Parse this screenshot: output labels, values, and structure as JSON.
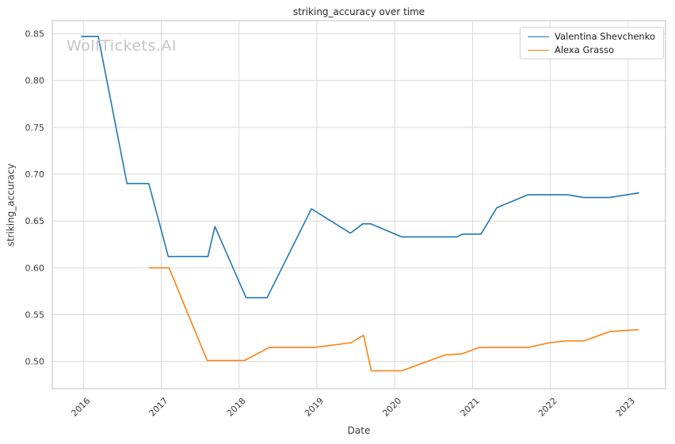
{
  "title": "striking_accuracy over time",
  "watermark": "WolfTickets.AI",
  "colors": {
    "background": "#ffffff",
    "grid": "#d9d9d9",
    "spine": "#cccccc",
    "tick_text": "#3a3a3a",
    "title_text": "#262626",
    "watermark_text": "#c4c4c4",
    "legend_border": "#d3d3d3"
  },
  "chart_data": {
    "type": "line",
    "title": "striking_accuracy over time",
    "xlabel": "Date",
    "ylabel": "striking_accuracy",
    "xlim": [
      2015.6,
      2023.48
    ],
    "ylim": [
      0.471,
      0.864
    ],
    "x_ticks": [
      2016,
      2017,
      2018,
      2019,
      2020,
      2021,
      2022,
      2023
    ],
    "y_ticks": [
      0.5,
      0.55,
      0.6,
      0.65,
      0.7,
      0.75,
      0.8,
      0.85
    ],
    "grid": true,
    "legend_position": "upper right",
    "series": [
      {
        "name": "Valentina Shevchenko",
        "color": "#1f77b4",
        "points": [
          [
            2015.97,
            0.847
          ],
          [
            2016.19,
            0.847
          ],
          [
            2016.56,
            0.69
          ],
          [
            2016.84,
            0.69
          ],
          [
            2017.09,
            0.612
          ],
          [
            2017.6,
            0.612
          ],
          [
            2017.69,
            0.644
          ],
          [
            2018.09,
            0.568
          ],
          [
            2018.36,
            0.568
          ],
          [
            2018.93,
            0.663
          ],
          [
            2019.43,
            0.637
          ],
          [
            2019.59,
            0.647
          ],
          [
            2019.69,
            0.647
          ],
          [
            2020.09,
            0.633
          ],
          [
            2020.8,
            0.633
          ],
          [
            2020.87,
            0.636
          ],
          [
            2021.11,
            0.636
          ],
          [
            2021.31,
            0.664
          ],
          [
            2021.71,
            0.678
          ],
          [
            2022.22,
            0.678
          ],
          [
            2022.43,
            0.675
          ],
          [
            2022.76,
            0.675
          ],
          [
            2023.14,
            0.68
          ]
        ]
      },
      {
        "name": "Alexa Grasso",
        "color": "#ff7f0e",
        "points": [
          [
            2016.84,
            0.6
          ],
          [
            2017.1,
            0.6
          ],
          [
            2017.59,
            0.501
          ],
          [
            2018.07,
            0.501
          ],
          [
            2018.39,
            0.515
          ],
          [
            2018.97,
            0.515
          ],
          [
            2019.44,
            0.52
          ],
          [
            2019.6,
            0.528
          ],
          [
            2019.7,
            0.49
          ],
          [
            2020.09,
            0.49
          ],
          [
            2020.65,
            0.507
          ],
          [
            2020.86,
            0.508
          ],
          [
            2021.09,
            0.515
          ],
          [
            2021.72,
            0.515
          ],
          [
            2021.99,
            0.52
          ],
          [
            2022.21,
            0.522
          ],
          [
            2022.43,
            0.522
          ],
          [
            2022.77,
            0.532
          ],
          [
            2023.14,
            0.534
          ]
        ]
      }
    ]
  }
}
